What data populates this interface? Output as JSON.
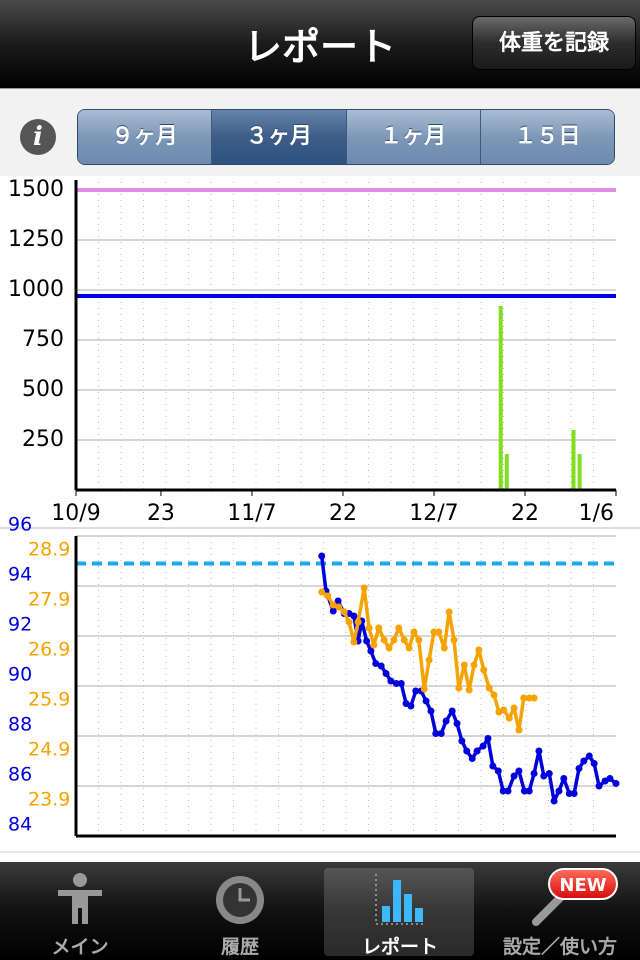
{
  "header": {
    "title": "レポート",
    "record_button": "体重を記録"
  },
  "segments": {
    "items": [
      "９ヶ月",
      "３ヶ月",
      "１ヶ月",
      "１５日"
    ],
    "selected": 1
  },
  "chart_data": [
    {
      "type": "bar",
      "xlim": [
        0,
        89
      ],
      "xticks": [
        {
          "value": 0,
          "label": "10/9"
        },
        {
          "value": 14,
          "label": "23"
        },
        {
          "value": 29,
          "label": "11/7"
        },
        {
          "value": 44,
          "label": "22"
        },
        {
          "value": 59,
          "label": "12/7"
        },
        {
          "value": 74,
          "label": "22"
        },
        {
          "value": 89,
          "label": "1/6"
        }
      ],
      "ylim": [
        0,
        1500
      ],
      "yticks": [
        250,
        500,
        750,
        1000,
        1250,
        1500
      ],
      "grid": true,
      "series": [
        {
          "color": "#7fe01e",
          "x": [
            70,
            71,
            82,
            83
          ],
          "values": [
            920,
            180,
            300,
            180
          ]
        }
      ],
      "reference_lines": [
        {
          "value": 1500,
          "color": "#e28de2",
          "dashed": false
        },
        {
          "value": 970,
          "color": "#0000e0",
          "dashed": false
        }
      ]
    },
    {
      "type": "line",
      "xlim": [
        0,
        89
      ],
      "ylim": [
        84,
        96
      ],
      "yticks": [
        84,
        86,
        88,
        90,
        92,
        94,
        96
      ],
      "y2lim": [
        23.42,
        29.42
      ],
      "y2ticks": [
        23.9,
        24.9,
        25.9,
        26.9,
        27.9,
        28.9
      ],
      "grid": true,
      "series": [
        {
          "color": "#0000dd",
          "x": [
            40.5,
            41.2,
            42.4,
            43.2,
            44.2,
            45.0,
            45.8,
            46.5,
            47.1,
            47.9,
            48.6,
            49.4,
            50.3,
            51.1,
            51.9,
            52.8,
            53.6,
            54.4,
            55.2,
            56.0,
            56.9,
            57.7,
            58.5,
            59.3,
            60.2,
            61.0,
            62.0,
            62.8,
            63.6,
            64.4,
            65.3,
            66.1,
            67.1,
            67.9,
            68.7,
            69.6,
            70.4,
            71.2,
            72.2,
            73.0,
            73.9,
            74.7,
            75.5,
            76.3,
            77.1,
            78.0,
            78.8,
            79.6,
            80.4,
            81.3,
            82.1,
            82.9,
            83.7,
            84.6,
            85.4,
            86.2,
            87.2,
            88.0,
            89.0
          ],
          "values": [
            95.2,
            93.8,
            93.0,
            93.4,
            92.9,
            92.9,
            92.8,
            91.8,
            92.6,
            91.8,
            91.4,
            90.9,
            90.8,
            90.5,
            90.2,
            90.1,
            90.1,
            89.3,
            89.2,
            89.8,
            89.8,
            89.4,
            89.0,
            88.1,
            88.1,
            88.6,
            89.0,
            88.5,
            87.8,
            87.4,
            87.1,
            87.4,
            87.6,
            87.9,
            86.8,
            86.6,
            85.8,
            85.8,
            86.4,
            86.6,
            85.8,
            85.8,
            86.5,
            87.4,
            86.4,
            86.5,
            85.4,
            85.8,
            86.3,
            85.7,
            85.7,
            86.7,
            87.0,
            87.2,
            86.9,
            86.0,
            86.2,
            86.3,
            86.1
          ]
        },
        {
          "color": "#f5a300",
          "axis": "y2",
          "x": [
            40.5,
            41.5,
            42.4,
            43.3,
            44.2,
            45.0,
            45.8,
            46.5,
            47.5,
            48.3,
            49.1,
            49.9,
            50.8,
            51.6,
            52.4,
            53.2,
            54.1,
            54.9,
            55.7,
            56.5,
            57.4,
            58.2,
            59.0,
            59.8,
            60.7,
            61.5,
            62.3,
            63.1,
            64.0,
            64.8,
            65.6,
            66.4,
            67.2,
            68.1,
            68.9,
            69.7,
            70.5,
            71.4,
            72.2,
            73.0,
            73.8,
            74.7,
            75.5
          ],
          "values": [
            28.3,
            28.22,
            28.04,
            28.0,
            27.9,
            27.7,
            27.3,
            27.7,
            28.38,
            27.58,
            27.24,
            27.58,
            27.34,
            27.18,
            27.34,
            27.58,
            27.34,
            27.18,
            27.5,
            27.34,
            26.36,
            26.94,
            27.5,
            27.5,
            27.18,
            27.9,
            27.34,
            26.38,
            26.84,
            26.34,
            26.84,
            27.14,
            26.74,
            26.38,
            26.24,
            25.9,
            25.94,
            25.78,
            25.98,
            25.54,
            26.18,
            26.18,
            26.18
          ]
        }
      ],
      "reference_lines": [
        {
          "value": 94.9,
          "color": "#1fa8e6",
          "dashed": true
        }
      ]
    }
  ],
  "tabs": {
    "items": [
      "メイン",
      "履歴",
      "レポート",
      "設定／使い方"
    ],
    "selected": 2,
    "badge": "NEW"
  }
}
